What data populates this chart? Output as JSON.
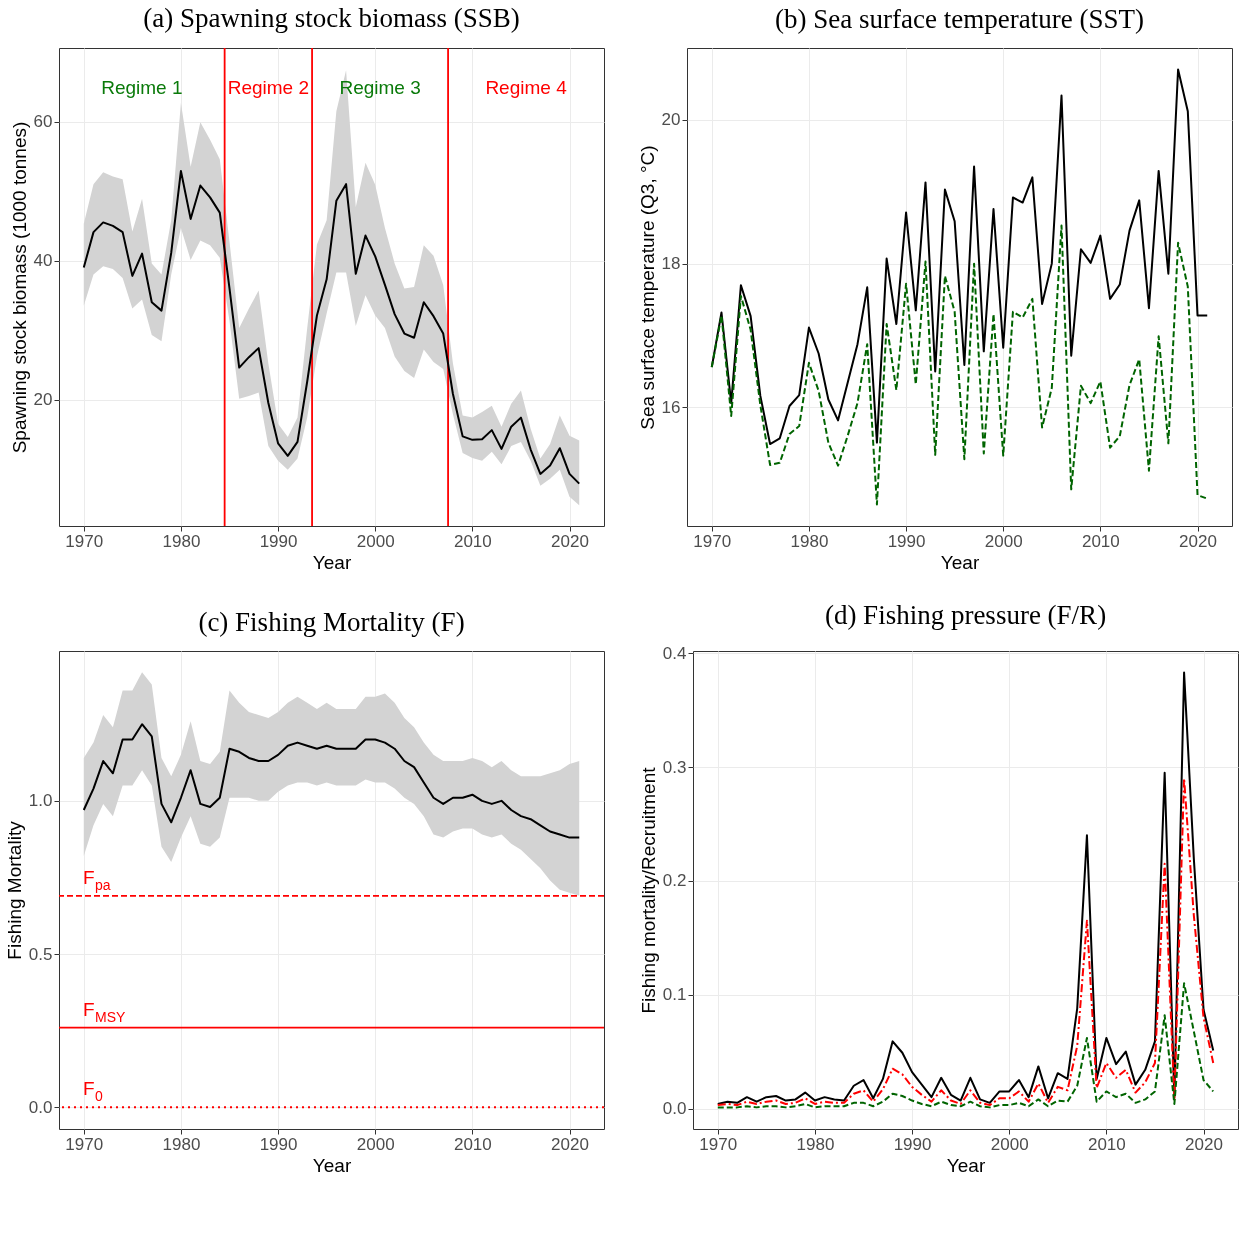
{
  "chart_data": [
    {
      "type": "line",
      "title": "(a) Spawning stock biomass (SSB)",
      "xlabel": "Year",
      "ylabel": "Spawning stock biomass (1000 tonnes)",
      "x": [
        1970,
        1971,
        1972,
        1973,
        1974,
        1975,
        1976,
        1977,
        1978,
        1979,
        1980,
        1981,
        1982,
        1983,
        1984,
        1985,
        1986,
        1987,
        1988,
        1989,
        1990,
        1991,
        1992,
        1993,
        1994,
        1995,
        1996,
        1997,
        1998,
        1999,
        2000,
        2001,
        2002,
        2003,
        2004,
        2005,
        2006,
        2007,
        2008,
        2009,
        2010,
        2011,
        2012,
        2013,
        2014,
        2015,
        2016,
        2017,
        2018,
        2019,
        2020,
        2021
      ],
      "xlim": [
        1967.45,
        2023.55
      ],
      "xticks": [
        1970,
        1980,
        1990,
        2000,
        2010,
        2020
      ],
      "ylim": [
        1.8,
        70.6
      ],
      "yticks": [
        20,
        40,
        60
      ],
      "grid": true,
      "series": [
        {
          "color": "#000000",
          "line_style": "solid",
          "values": [
            39.0,
            44.1,
            45.5,
            45.0,
            44.1,
            37.8,
            41.0,
            34.0,
            32.8,
            41.1,
            52.9,
            46.0,
            50.8,
            49.1,
            46.9,
            36.0,
            24.6,
            26.1,
            27.4,
            19.5,
            13.7,
            11.9,
            13.9,
            22.6,
            32.1,
            37.3,
            48.6,
            51.0,
            38.1,
            43.6,
            40.6,
            36.5,
            32.3,
            29.5,
            28.9,
            34.0,
            32.0,
            29.5,
            20.8,
            14.7,
            14.2,
            14.3,
            15.6,
            12.9,
            16.1,
            17.4,
            12.8,
            9.3,
            10.5,
            13.0,
            9.3,
            7.9
          ],
          "upper": [
            45.3,
            51.0,
            52.7,
            52.1,
            51.7,
            44.2,
            48.9,
            39.6,
            38.0,
            45.8,
            62.7,
            53.5,
            59.9,
            57.4,
            54.6,
            42.7,
            30.3,
            33.1,
            35.7,
            25.2,
            16.5,
            14.6,
            17.4,
            30.3,
            42.3,
            45.8,
            61.5,
            67.4,
            47.7,
            54.1,
            50.9,
            44.7,
            39.6,
            36.0,
            36.2,
            42.2,
            40.7,
            36.5,
            25.2,
            17.7,
            17.4,
            18.2,
            19.1,
            16.1,
            19.4,
            21.3,
            15.8,
            11.5,
            13.6,
            17.7,
            14.8,
            14.1
          ],
          "lower": [
            33.5,
            38.0,
            39.2,
            38.8,
            37.5,
            33.1,
            34.4,
            29.3,
            28.4,
            38.0,
            44.7,
            40.1,
            42.9,
            42.2,
            40.4,
            31.3,
            20.1,
            20.5,
            21.0,
            13.3,
            11.2,
            9.9,
            11.5,
            17.4,
            26.2,
            32.4,
            38.3,
            38.3,
            30.6,
            35.0,
            32.1,
            30.3,
            26.2,
            24.1,
            23.1,
            27.2,
            25.4,
            24.4,
            17.9,
            12.3,
            11.6,
            11.2,
            12.5,
            10.7,
            13.3,
            13.9,
            11.2,
            7.6,
            8.6,
            9.9,
            6.0,
            4.8
          ]
        }
      ],
      "ref_lines": [
        {
          "axis": "x",
          "value": 1984.5,
          "color": "#ff0000",
          "line_style": "solid"
        },
        {
          "axis": "x",
          "value": 1993.5,
          "color": "#ff0000",
          "line_style": "solid"
        },
        {
          "axis": "x",
          "value": 2007.5,
          "color": "#ff0000",
          "line_style": "solid"
        }
      ],
      "annotations": [
        "Regime 1",
        "Regime 2",
        "Regime 3",
        "Regime 4"
      ]
    },
    {
      "type": "line",
      "title": "(b) Sea surface temperature (SST)",
      "xlabel": "Year",
      "ylabel": "Sea surface temperature (Q3, °C)",
      "x": [
        1970,
        1971,
        1972,
        1973,
        1974,
        1975,
        1976,
        1977,
        1978,
        1979,
        1980,
        1981,
        1982,
        1983,
        1984,
        1985,
        1986,
        1987,
        1988,
        1989,
        1990,
        1991,
        1992,
        1993,
        1994,
        1995,
        1996,
        1997,
        1998,
        1999,
        2000,
        2001,
        2002,
        2003,
        2004,
        2005,
        2006,
        2007,
        2008,
        2009,
        2010,
        2011,
        2012,
        2013,
        2014,
        2015,
        2016,
        2017,
        2018,
        2019,
        2020,
        2021
      ],
      "xlim": [
        1967.45,
        2023.55
      ],
      "xticks": [
        1970,
        1980,
        1990,
        2000,
        2010,
        2020
      ],
      "ylim": [
        14.35,
        21.0
      ],
      "yticks": [
        16,
        18,
        20
      ],
      "grid": true,
      "series": [
        {
          "color": "#000000",
          "line_style": "solid",
          "values": [
            16.56,
            17.32,
            16.06,
            17.7,
            17.27,
            16.16,
            15.49,
            15.57,
            16.02,
            16.17,
            17.11,
            16.75,
            16.11,
            15.82,
            16.35,
            16.88,
            17.67,
            15.51,
            18.07,
            17.16,
            18.71,
            17.35,
            19.13,
            16.5,
            19.03,
            18.59,
            16.59,
            19.35,
            16.78,
            18.76,
            16.83,
            18.92,
            18.85,
            19.2,
            17.44,
            18.0,
            20.34,
            16.72,
            18.2,
            18.01,
            18.39,
            17.51,
            17.71,
            18.46,
            18.88,
            17.38,
            19.29,
            17.86,
            20.7,
            20.12,
            17.28,
            17.28
          ]
        },
        {
          "color": "#006400",
          "line_style": "dashed",
          "values": [
            16.56,
            17.28,
            15.88,
            17.55,
            17.08,
            16.03,
            15.2,
            15.23,
            15.63,
            15.74,
            16.62,
            16.23,
            15.51,
            15.19,
            15.61,
            16.06,
            16.88,
            14.65,
            17.16,
            16.24,
            17.72,
            16.32,
            18.03,
            15.34,
            17.83,
            17.33,
            15.28,
            18.0,
            15.36,
            17.3,
            15.33,
            17.33,
            17.25,
            17.51,
            15.72,
            16.27,
            18.53,
            14.86,
            16.3,
            16.06,
            16.36,
            15.44,
            15.6,
            16.31,
            16.67,
            15.12,
            16.99,
            15.5,
            18.29,
            17.68,
            14.78,
            14.73
          ]
        }
      ]
    },
    {
      "type": "line",
      "title": "(c) Fishing Mortality (F)",
      "xlabel": "Year",
      "ylabel": "Fishing Mortality",
      "x": [
        1970,
        1971,
        1972,
        1973,
        1974,
        1975,
        1976,
        1977,
        1978,
        1979,
        1980,
        1981,
        1982,
        1983,
        1984,
        1985,
        1986,
        1987,
        1988,
        1989,
        1990,
        1991,
        1992,
        1993,
        1994,
        1995,
        1996,
        1997,
        1998,
        1999,
        2000,
        2001,
        2002,
        2003,
        2004,
        2005,
        2006,
        2007,
        2008,
        2009,
        2010,
        2011,
        2012,
        2013,
        2014,
        2015,
        2016,
        2017,
        2018,
        2019,
        2020,
        2021
      ],
      "xlim": [
        1967.45,
        2023.55
      ],
      "xticks": [
        1970,
        1980,
        1990,
        2000,
        2010,
        2020
      ],
      "ylim": [
        -0.071,
        1.489
      ],
      "yticks": [
        {
          "value": 0,
          "label": "0.0"
        },
        {
          "value": 0.5,
          "label": "0.5"
        },
        {
          "value": 1,
          "label": "1.0"
        }
      ],
      "grid": true,
      "series": [
        {
          "color": "#000000",
          "line_style": "solid",
          "values": [
            0.97,
            1.04,
            1.13,
            1.09,
            1.2,
            1.2,
            1.25,
            1.21,
            0.99,
            0.93,
            1.01,
            1.1,
            0.99,
            0.98,
            1.01,
            1.17,
            1.16,
            1.14,
            1.13,
            1.13,
            1.15,
            1.18,
            1.19,
            1.18,
            1.17,
            1.18,
            1.17,
            1.17,
            1.17,
            1.2,
            1.2,
            1.19,
            1.17,
            1.13,
            1.11,
            1.06,
            1.01,
            0.99,
            1.01,
            1.01,
            1.02,
            1.0,
            0.99,
            1.0,
            0.97,
            0.95,
            0.94,
            0.92,
            0.9,
            0.89,
            0.88,
            0.88
          ],
          "upper": [
            1.14,
            1.19,
            1.28,
            1.24,
            1.36,
            1.36,
            1.42,
            1.38,
            1.14,
            1.08,
            1.15,
            1.26,
            1.13,
            1.12,
            1.16,
            1.36,
            1.32,
            1.29,
            1.28,
            1.27,
            1.29,
            1.32,
            1.34,
            1.32,
            1.3,
            1.32,
            1.3,
            1.3,
            1.3,
            1.34,
            1.34,
            1.35,
            1.32,
            1.27,
            1.24,
            1.19,
            1.15,
            1.13,
            1.13,
            1.13,
            1.14,
            1.13,
            1.11,
            1.13,
            1.1,
            1.08,
            1.08,
            1.08,
            1.09,
            1.1,
            1.12,
            1.13
          ],
          "lower": [
            0.82,
            0.92,
            0.99,
            0.95,
            1.05,
            1.05,
            1.1,
            1.05,
            0.85,
            0.8,
            0.88,
            0.95,
            0.86,
            0.85,
            0.88,
            1.01,
            1.01,
            1.01,
            1.0,
            1.0,
            1.03,
            1.05,
            1.06,
            1.06,
            1.05,
            1.06,
            1.05,
            1.05,
            1.05,
            1.07,
            1.06,
            1.06,
            1.04,
            1.01,
            0.99,
            0.95,
            0.89,
            0.88,
            0.9,
            0.91,
            0.91,
            0.89,
            0.88,
            0.89,
            0.86,
            0.84,
            0.81,
            0.78,
            0.74,
            0.71,
            0.7,
            0.69
          ]
        }
      ],
      "ref_lines": [
        {
          "axis": "y",
          "value": 0.69,
          "label": "F$_{pa}$",
          "color": "#ff0000",
          "line_style": "dashed"
        },
        {
          "axis": "y",
          "value": 0.26,
          "label": "F$_{MSY}$",
          "color": "#ff0000",
          "line_style": "solid"
        },
        {
          "axis": "y",
          "value": 0,
          "label": "F$_{0}$",
          "color": "#ff0000",
          "line_style": "dotted"
        }
      ]
    },
    {
      "type": "line",
      "title": "(d) Fishing pressure (F/R)",
      "xlabel": "Year",
      "ylabel": "Fishing mortality/Recruitment",
      "x": [
        1970,
        1971,
        1972,
        1973,
        1974,
        1975,
        1976,
        1977,
        1978,
        1979,
        1980,
        1981,
        1982,
        1983,
        1984,
        1985,
        1986,
        1987,
        1988,
        1989,
        1990,
        1991,
        1992,
        1993,
        1994,
        1995,
        1996,
        1997,
        1998,
        1999,
        2000,
        2001,
        2002,
        2003,
        2004,
        2005,
        2006,
        2007,
        2008,
        2009,
        2010,
        2011,
        2012,
        2013,
        2014,
        2015,
        2016,
        2017,
        2018,
        2019,
        2020,
        2021
      ],
      "xlim": [
        1967.45,
        2023.55
      ],
      "xticks": [
        1970,
        1980,
        1990,
        2000,
        2010,
        2020
      ],
      "ylim": [
        -0.018,
        0.402
      ],
      "yticks": [
        {
          "value": 0,
          "label": "0.0"
        },
        {
          "value": 0.1,
          "label": "0.1"
        },
        {
          "value": 0.2,
          "label": "0.2"
        },
        {
          "value": 0.3,
          "label": "0.3"
        },
        {
          "value": 0.4,
          "label": "0.4"
        }
      ],
      "grid": true,
      "series": [
        {
          "color": "#000000",
          "line_style": "solid",
          "values": [
            0.004,
            0.006,
            0.005,
            0.01,
            0.006,
            0.01,
            0.011,
            0.007,
            0.008,
            0.014,
            0.007,
            0.01,
            0.008,
            0.007,
            0.02,
            0.025,
            0.009,
            0.026,
            0.059,
            0.049,
            0.032,
            0.021,
            0.01,
            0.027,
            0.012,
            0.007,
            0.027,
            0.008,
            0.005,
            0.015,
            0.015,
            0.025,
            0.01,
            0.037,
            0.009,
            0.031,
            0.026,
            0.088,
            0.24,
            0.026,
            0.062,
            0.039,
            0.05,
            0.021,
            0.034,
            0.059,
            0.295,
            0.01,
            0.383,
            0.22,
            0.087,
            0.051
          ]
        },
        {
          "color": "#ff0000",
          "line_style": "dashdot",
          "values": [
            0.003,
            0.004,
            0.003,
            0.006,
            0.004,
            0.006,
            0.007,
            0.004,
            0.005,
            0.009,
            0.004,
            0.006,
            0.005,
            0.005,
            0.013,
            0.016,
            0.006,
            0.017,
            0.035,
            0.03,
            0.019,
            0.012,
            0.006,
            0.016,
            0.007,
            0.004,
            0.016,
            0.005,
            0.003,
            0.009,
            0.009,
            0.015,
            0.006,
            0.022,
            0.005,
            0.019,
            0.016,
            0.055,
            0.165,
            0.018,
            0.04,
            0.027,
            0.034,
            0.014,
            0.023,
            0.04,
            0.215,
            0.008,
            0.29,
            0.17,
            0.08,
            0.04
          ]
        },
        {
          "color": "#006400",
          "line_style": "dashed",
          "values": [
            0.001,
            0.001,
            0.001,
            0.002,
            0.001,
            0.002,
            0.002,
            0.001,
            0.002,
            0.004,
            0.001,
            0.002,
            0.002,
            0.002,
            0.005,
            0.005,
            0.002,
            0.006,
            0.013,
            0.011,
            0.007,
            0.004,
            0.002,
            0.006,
            0.003,
            0.002,
            0.006,
            0.002,
            0.001,
            0.003,
            0.003,
            0.005,
            0.002,
            0.008,
            0.002,
            0.007,
            0.006,
            0.02,
            0.062,
            0.006,
            0.015,
            0.01,
            0.013,
            0.005,
            0.008,
            0.015,
            0.082,
            0.004,
            0.11,
            0.068,
            0.025,
            0.015
          ]
        }
      ]
    }
  ]
}
